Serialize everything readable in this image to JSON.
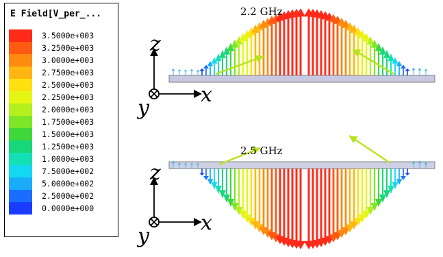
{
  "legend": {
    "title": "E Field[V_per_...",
    "ticks": [
      {
        "label": "3.5000e+003",
        "color": "#ff2a1a"
      },
      {
        "label": "3.2500e+003",
        "color": "#ff5a12"
      },
      {
        "label": "3.0000e+003",
        "color": "#ff8a10"
      },
      {
        "label": "2.7500e+003",
        "color": "#ffb512"
      },
      {
        "label": "2.5000e+003",
        "color": "#ffe010"
      },
      {
        "label": "2.2500e+003",
        "color": "#e5f514"
      },
      {
        "label": "2.0000e+003",
        "color": "#b4f01e"
      },
      {
        "label": "1.7500e+003",
        "color": "#7de628"
      },
      {
        "label": "1.5000e+003",
        "color": "#3ed83a"
      },
      {
        "label": "1.2500e+003",
        "color": "#16d87a"
      },
      {
        "label": "1.0000e+003",
        "color": "#14e0b6"
      },
      {
        "label": "7.5000e+002",
        "color": "#14d8f0"
      },
      {
        "label": "5.0000e+002",
        "color": "#18acfa"
      },
      {
        "label": "2.5000e+002",
        "color": "#1a6eff"
      },
      {
        "label": "0.0000e+000",
        "color": "#1a3cff"
      }
    ]
  },
  "panels": [
    {
      "frequency_label": "2.2 GHz",
      "direction": "up",
      "x_axis": "x",
      "y_axis": "y",
      "z_axis": "z"
    },
    {
      "frequency_label": "2.5 GHz",
      "direction": "down",
      "x_axis": "x",
      "y_axis": "y",
      "z_axis": "z"
    }
  ]
}
